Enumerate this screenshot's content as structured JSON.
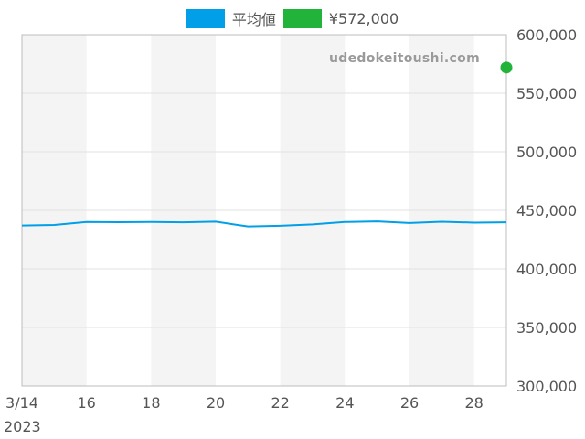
{
  "legend": [
    {
      "label": "平均値",
      "color": "#009fe8"
    },
    {
      "label": "¥572,000",
      "color": "#22b33a"
    }
  ],
  "watermark": "udedokeitoushi.com",
  "chart_data": {
    "type": "line",
    "x_tick_labels": [
      "3/14",
      "16",
      "18",
      "20",
      "22",
      "24",
      "26",
      "28"
    ],
    "x_year_label": "2023",
    "x": [
      "2023-03-14",
      "2023-03-15",
      "2023-03-16",
      "2023-03-17",
      "2023-03-18",
      "2023-03-19",
      "2023-03-20",
      "2023-03-21",
      "2023-03-22",
      "2023-03-23",
      "2023-03-24",
      "2023-03-25",
      "2023-03-26",
      "2023-03-27",
      "2023-03-28",
      "2023-03-29"
    ],
    "series": [
      {
        "name": "平均値",
        "color": "#009fe8",
        "values": [
          437000,
          437500,
          440000,
          439800,
          440000,
          439700,
          440300,
          436200,
          436800,
          438000,
          440000,
          440500,
          439200,
          440200,
          439500,
          439700
        ]
      },
      {
        "name": "¥572,000",
        "color": "#22b33a",
        "type": "point",
        "points": [
          {
            "x": "2023-03-29",
            "y": 572000
          }
        ]
      }
    ],
    "y_tick_labels": [
      "600,000",
      "550,000",
      "500,000",
      "450,000",
      "400,000",
      "350,000",
      "300,000"
    ],
    "ylim": [
      300000,
      600000
    ],
    "y_axis_side": "right",
    "grid": true,
    "alternating_bands": true,
    "legend_position": "top-center"
  }
}
